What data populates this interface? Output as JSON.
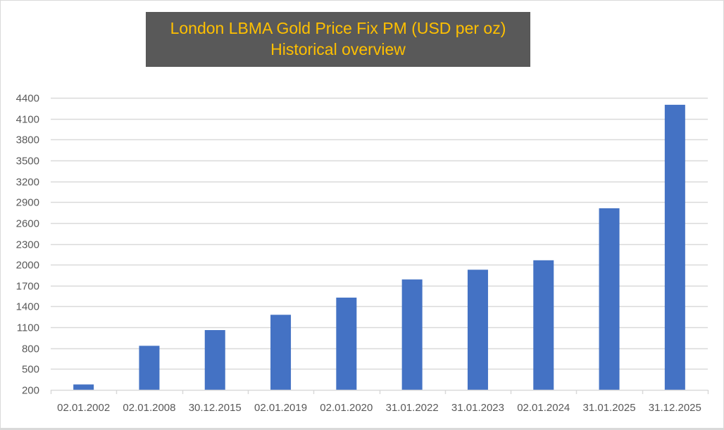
{
  "chart_data": {
    "type": "bar",
    "title": "London LBMA Gold Price Fix PM (USD per oz)",
    "subtitle": "Historical overview",
    "xlabel": "",
    "ylabel": "",
    "categories": [
      "02.01.2002",
      "02.01.2008",
      "30.12.2015",
      "02.01.2019",
      "02.01.2020",
      "31.01.2022",
      "31.01.2023",
      "02.01.2024",
      "31.01.2025",
      "31.12.2025"
    ],
    "values": [
      278,
      834,
      1060,
      1280,
      1527,
      1788,
      1928,
      2064,
      2812,
      4300
    ],
    "ylim": [
      200,
      4400
    ],
    "yticks": [
      200,
      500,
      800,
      1100,
      1400,
      1700,
      2000,
      2300,
      2600,
      2900,
      3200,
      3500,
      3800,
      4100,
      4400
    ],
    "grid": true,
    "legend": "none",
    "colors": {
      "bar": "#4472C4",
      "title_bg": "#595959",
      "title_text": "#FFC000",
      "grid": "#d9d9d9",
      "tick_text": "#595959"
    }
  }
}
